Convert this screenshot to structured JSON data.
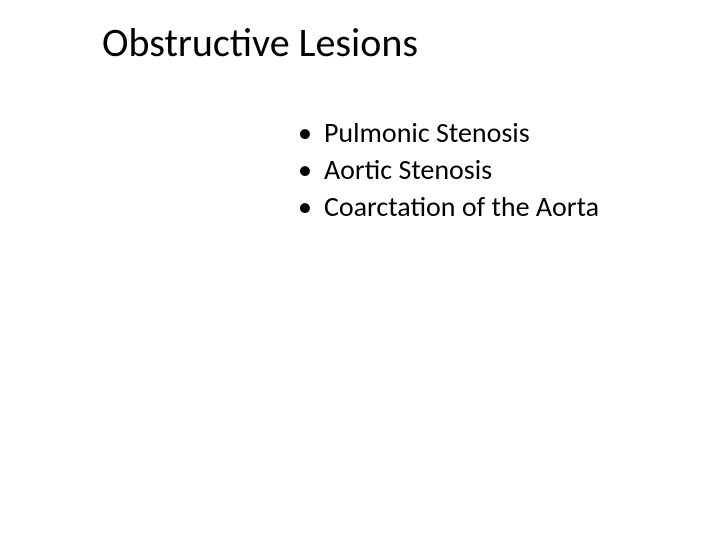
{
  "slide": {
    "title": "Obstructive Lesions",
    "title_fontsize": 40,
    "title_color": "#000000",
    "body_fontsize": 28,
    "body_color": "#000000",
    "background_color": "#ffffff",
    "bullet_glyph": "•",
    "bullets": [
      {
        "text": "Pulmonic Stenosis"
      },
      {
        "text": "Aortic Stenosis"
      },
      {
        "text": "Coarctation of the Aorta"
      }
    ]
  }
}
